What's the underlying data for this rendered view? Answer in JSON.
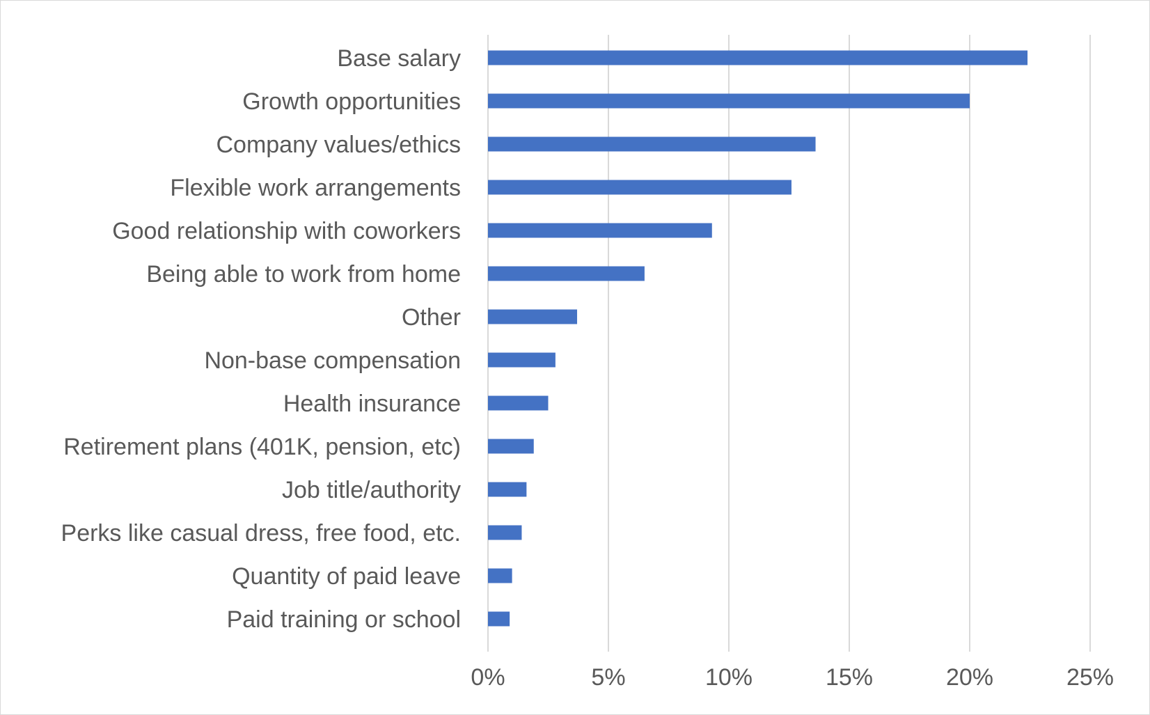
{
  "chart_data": {
    "type": "bar",
    "orientation": "horizontal",
    "title": "",
    "xlabel": "",
    "ylabel": "",
    "categories": [
      "Base salary",
      "Growth opportunities",
      "Company values/ethics",
      "Flexible work arrangements",
      "Good relationship with coworkers",
      "Being able to work from home",
      "Other",
      "Non-base compensation",
      "Health insurance",
      "Retirement plans (401K, pension, etc)",
      "Job title/authority",
      "Perks like casual dress, free food, etc.",
      "Quantity of paid leave",
      "Paid training or school"
    ],
    "values": [
      22.4,
      20.0,
      13.6,
      12.6,
      9.3,
      6.5,
      3.7,
      2.8,
      2.5,
      1.9,
      1.6,
      1.4,
      1.0,
      0.9
    ],
    "xlim": [
      0,
      25
    ],
    "xticks": [
      {
        "value": 0,
        "label": "0%"
      },
      {
        "value": 5,
        "label": "5%"
      },
      {
        "value": 10,
        "label": "10%"
      },
      {
        "value": 15,
        "label": "15%"
      },
      {
        "value": 20,
        "label": "20%"
      },
      {
        "value": 25,
        "label": "25%"
      }
    ],
    "grid": "vertical",
    "legend": "none",
    "bar_color": "#4472C4",
    "grid_color": "#d9d9d9",
    "text_color": "#595959"
  }
}
